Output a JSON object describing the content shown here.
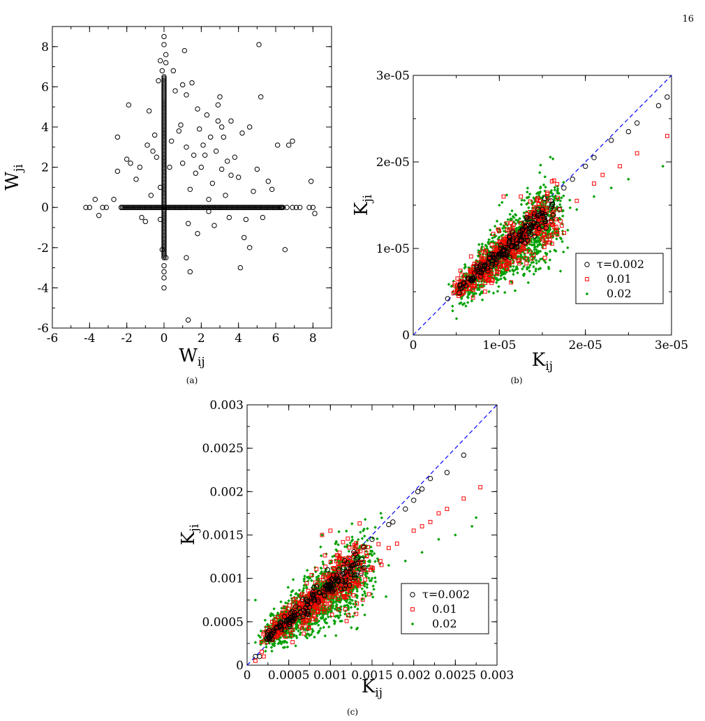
{
  "page_number": "16",
  "chart_data": [
    {
      "id": "a",
      "type": "scatter",
      "caption": "(a)",
      "xlabel": "W",
      "xlabel_sub": "ij",
      "ylabel": "W",
      "ylabel_sub": "ji",
      "xlim": [
        -6,
        9
      ],
      "ylim": [
        -6,
        9
      ],
      "xticks": [
        -6,
        -4,
        -2,
        0,
        2,
        4,
        6,
        8
      ],
      "yticks": [
        -6,
        -4,
        -2,
        0,
        2,
        4,
        6,
        8
      ],
      "xtick_labels": [
        "-6",
        "-4",
        "-2",
        "0",
        "2",
        "4",
        "6",
        "8"
      ],
      "ytick_labels": [
        "-6",
        "-4",
        "-2",
        "0",
        "2",
        "4",
        "6",
        "8"
      ],
      "grid": false,
      "marker": "open-circle",
      "colors": {
        "marker": "#000000"
      },
      "series": [
        {
          "points": [
            [
              -4.2,
              0
            ],
            [
              -4,
              0
            ],
            [
              -3.7,
              0.4
            ],
            [
              -3.5,
              -0.4
            ],
            [
              -3.3,
              0
            ],
            [
              -3.1,
              0
            ],
            [
              -2.7,
              0.4
            ],
            [
              -2.5,
              3.5
            ],
            [
              -2.5,
              1.8
            ],
            [
              -2.3,
              0
            ],
            [
              -2,
              2.4
            ],
            [
              -1.9,
              5.1
            ],
            [
              -1.8,
              2.2
            ],
            [
              -1.5,
              1.4
            ],
            [
              -1.3,
              2.0
            ],
            [
              -1.2,
              -0.5
            ],
            [
              -1,
              -0.7
            ],
            [
              -0.9,
              3.1
            ],
            [
              -0.8,
              4.8
            ],
            [
              -0.7,
              0.6
            ],
            [
              -0.6,
              2.8
            ],
            [
              -0.5,
              3.6
            ],
            [
              -0.4,
              2.5
            ],
            [
              -0.3,
              6.3
            ],
            [
              -0.2,
              -0.6
            ],
            [
              -0.2,
              1.0
            ],
            [
              0.3,
              2.0
            ],
            [
              0.4,
              3.3
            ],
            [
              0.6,
              5.8
            ],
            [
              0.5,
              6.8
            ],
            [
              0.8,
              3.8
            ],
            [
              0.9,
              4.1
            ],
            [
              1,
              2.2
            ],
            [
              1,
              6.1
            ],
            [
              1.1,
              7.8
            ],
            [
              1.2,
              3.0
            ],
            [
              1.2,
              5.6
            ],
            [
              1.3,
              -0.8
            ],
            [
              1.4,
              0.9
            ],
            [
              1.5,
              6.2
            ],
            [
              1.6,
              2.6
            ],
            [
              1.7,
              1.7
            ],
            [
              1.8,
              4.9
            ],
            [
              1.8,
              -1.3
            ],
            [
              2,
              2.0
            ],
            [
              2.1,
              3.1
            ],
            [
              2.3,
              4.6
            ],
            [
              2.4,
              0.4
            ],
            [
              2.5,
              3.5
            ],
            [
              2.6,
              1.2
            ],
            [
              2.7,
              -0.9
            ],
            [
              2.8,
              2.8
            ],
            [
              2.9,
              5.1
            ],
            [
              3,
              5.5
            ],
            [
              3.1,
              1.9
            ],
            [
              3.2,
              3.5
            ],
            [
              3.3,
              0.6
            ],
            [
              3.4,
              2.3
            ],
            [
              3.5,
              -0.5
            ],
            [
              3.6,
              4.3
            ],
            [
              3.8,
              2.5
            ],
            [
              4,
              1.5
            ],
            [
              4.1,
              -3.0
            ],
            [
              4.2,
              3.7
            ],
            [
              4.4,
              -0.6
            ],
            [
              4.6,
              4.0
            ],
            [
              4.8,
              0.8
            ],
            [
              5,
              1.9
            ],
            [
              5.1,
              8.1
            ],
            [
              5.2,
              5.5
            ],
            [
              5.3,
              -0.5
            ],
            [
              5.6,
              1.3
            ],
            [
              5.8,
              0.9
            ],
            [
              6.1,
              3.1
            ],
            [
              6.5,
              -2.1
            ],
            [
              6.7,
              3.1
            ],
            [
              6.9,
              3.3
            ],
            [
              7.1,
              0
            ],
            [
              7.8,
              0
            ],
            [
              7.9,
              1.3
            ],
            [
              8.1,
              -0.3
            ],
            [
              8,
              0
            ],
            [
              6.3,
              0
            ],
            [
              6.6,
              0
            ],
            [
              6.9,
              0
            ],
            [
              7.3,
              0
            ],
            [
              -0.2,
              7.3
            ],
            [
              0,
              8.5
            ],
            [
              0,
              8.1
            ],
            [
              0.1,
              7.6
            ],
            [
              0.1,
              7.2
            ],
            [
              -0.1,
              6.8
            ],
            [
              0,
              -3.5
            ],
            [
              0,
              -4.0
            ],
            [
              0,
              -3.2
            ],
            [
              0,
              -2.9
            ],
            [
              0.1,
              -2.5
            ],
            [
              -0.1,
              -2.1
            ],
            [
              1.2,
              -2.5
            ],
            [
              1.4,
              -3.2
            ],
            [
              1.3,
              -5.6
            ],
            [
              4.6,
              -2.0
            ],
            [
              4.3,
              -1.5
            ],
            [
              2.4,
              -0.2
            ],
            [
              3.6,
              1.6
            ],
            [
              2.2,
              2.6
            ],
            [
              2.9,
              4.3
            ],
            [
              3.1,
              4.0
            ],
            [
              1.9,
              3.9
            ]
          ],
          "dense_segments": [
            {
              "axis": "x",
              "from": -2.3,
              "to": 6.4,
              "at": 0
            },
            {
              "axis": "y",
              "from": -2.5,
              "to": 6.5,
              "at": 0
            }
          ]
        }
      ]
    },
    {
      "id": "b",
      "type": "scatter",
      "caption": "(b)",
      "xlabel": "K",
      "xlabel_sub": "ij",
      "ylabel": "K",
      "ylabel_sub": "ji",
      "xlim": [
        0,
        3e-05
      ],
      "ylim": [
        0,
        3e-05
      ],
      "xticks": [
        0,
        1e-05,
        2e-05,
        3e-05
      ],
      "yticks": [
        0,
        1e-05,
        2e-05,
        3e-05
      ],
      "xtick_labels": [
        "0",
        "1e-05",
        "2e-05",
        "3e-05"
      ],
      "ytick_labels": [
        "0",
        "1e-05",
        "2e-05",
        "3e-05"
      ],
      "grid": false,
      "legend_placement": "bottom-right",
      "reference_line": {
        "from": [
          0,
          0
        ],
        "to": [
          3e-05,
          3e-05
        ],
        "style": "dashed",
        "color": "#0000ff"
      },
      "series": [
        {
          "name": "τ=0.002",
          "marker": "open-circle",
          "color": "#000000",
          "points": [
            [
              1.3e-05,
              1.3e-05
            ],
            [
              1.45e-05,
              1.45e-05
            ],
            [
              1.6e-05,
              1.55e-05
            ],
            [
              1.75e-05,
              1.7e-05
            ],
            [
              1.85e-05,
              1.8e-05
            ],
            [
              2e-05,
              1.95e-05
            ],
            [
              2.1e-05,
              2.05e-05
            ],
            [
              2.3e-05,
              2.25e-05
            ],
            [
              2.5e-05,
              2.35e-05
            ],
            [
              2.6e-05,
              2.45e-05
            ],
            [
              2.85e-05,
              2.65e-05
            ],
            [
              2.95e-05,
              2.75e-05
            ],
            [
              5.5e-06,
              5.4e-06
            ],
            [
              4e-06,
              4.2e-06
            ],
            [
              1.2e-05,
              1.1e-05
            ]
          ]
        },
        {
          "name": "0.01",
          "marker": "open-square",
          "color": "#ff0000",
          "points": [
            [
              1.5e-05,
              1.35e-05
            ],
            [
              1.7e-05,
              1.45e-05
            ],
            [
              1.9e-05,
              1.55e-05
            ],
            [
              2.1e-05,
              1.75e-05
            ],
            [
              2.2e-05,
              1.85e-05
            ],
            [
              2.4e-05,
              1.95e-05
            ],
            [
              2.6e-05,
              2.1e-05
            ],
            [
              2.95e-05,
              2.3e-05
            ],
            [
              1.25e-05,
              1.6e-05
            ],
            [
              1.05e-05,
              1.6e-05
            ],
            [
              1.3e-05,
              1.15e-05
            ],
            [
              1.6e-05,
              1.3e-05
            ]
          ]
        },
        {
          "name": "0.02",
          "marker": "dot",
          "color": "#00a000",
          "points": [
            [
              1.5e-05,
              1.25e-05
            ],
            [
              1.7e-05,
              1.35e-05
            ],
            [
              1.9e-05,
              1.45e-05
            ],
            [
              2.1e-05,
              1.6e-05
            ],
            [
              2.3e-05,
              1.7e-05
            ],
            [
              2.5e-05,
              1.8e-05
            ],
            [
              2.9e-05,
              1.95e-05
            ],
            [
              8e-06,
              1.02e-05
            ],
            [
              1e-05,
              1.5e-05
            ],
            [
              1.2e-05,
              1.2e-05
            ],
            [
              1.4e-05,
              1.1e-05
            ]
          ]
        }
      ],
      "dense_cloud": {
        "center_line_from": [
          5e-06,
          5e-06
        ],
        "center_line_to": [
          1.6e-05,
          1.45e-05
        ],
        "spread": 1.6e-06
      }
    },
    {
      "id": "c",
      "type": "scatter",
      "caption": "(c)",
      "xlabel": "K",
      "xlabel_sub": "ij",
      "ylabel": "K",
      "ylabel_sub": "ji",
      "xlim": [
        0,
        0.003
      ],
      "ylim": [
        0,
        0.003
      ],
      "xticks": [
        0,
        0.0005,
        0.001,
        0.0015,
        0.002,
        0.0025,
        0.003
      ],
      "yticks": [
        0,
        0.0005,
        0.001,
        0.0015,
        0.002,
        0.0025,
        0.003
      ],
      "xtick_labels": [
        "0",
        "0.0005",
        "0.001",
        "0.0015",
        "0.002",
        "0.0025",
        "0.003"
      ],
      "ytick_labels": [
        "0",
        "0.0005",
        "0.001",
        "0.0015",
        "0.002",
        "0.0025",
        "0.003"
      ],
      "grid": false,
      "legend_placement": "bottom-right",
      "reference_line": {
        "from": [
          0,
          0
        ],
        "to": [
          0.003,
          0.003
        ],
        "style": "dashed",
        "color": "#0000ff"
      },
      "series": [
        {
          "name": "τ=0.002",
          "marker": "open-circle",
          "color": "#000000",
          "points": [
            [
              0.0011,
              0.0011
            ],
            [
              0.0012,
              0.00118
            ],
            [
              0.0013,
              0.00128
            ],
            [
              0.0014,
              0.00136
            ],
            [
              0.0015,
              0.00145
            ],
            [
              0.0017,
              0.00162
            ],
            [
              0.00175,
              0.00165
            ],
            [
              0.0019,
              0.0018
            ],
            [
              0.002,
              0.0019
            ],
            [
              0.00205,
              0.002
            ],
            [
              0.0021,
              0.00203
            ],
            [
              0.0022,
              0.00215
            ],
            [
              0.0024,
              0.00222
            ],
            [
              0.0026,
              0.00242
            ],
            [
              0.00015,
              0.0001
            ],
            [
              0.0001,
              0.0001
            ],
            [
              0.0003,
              0.0003
            ]
          ]
        },
        {
          "name": "0.01",
          "marker": "open-square",
          "color": "#ff0000",
          "points": [
            [
              0.0012,
              0.001
            ],
            [
              0.0014,
              0.0011
            ],
            [
              0.0016,
              0.0012
            ],
            [
              0.0017,
              0.00135
            ],
            [
              0.0018,
              0.0014
            ],
            [
              0.002,
              0.00155
            ],
            [
              0.0021,
              0.0016
            ],
            [
              0.0022,
              0.00165
            ],
            [
              0.0023,
              0.00175
            ],
            [
              0.0024,
              0.0018
            ],
            [
              0.0026,
              0.00192
            ],
            [
              0.0028,
              0.00205
            ],
            [
              0.001,
              0.00155
            ],
            [
              0.0009,
              0.0015
            ],
            [
              0.0003,
              0.0005
            ],
            [
              0.0002,
              0.0001
            ],
            [
              0.0001,
              5e-05
            ]
          ]
        },
        {
          "name": "0.02",
          "marker": "dot",
          "color": "#00a000",
          "points": [
            [
              0.0013,
              0.0009
            ],
            [
              0.0015,
              0.001
            ],
            [
              0.0017,
              0.00115
            ],
            [
              0.0019,
              0.0012
            ],
            [
              0.0021,
              0.0013
            ],
            [
              0.0023,
              0.00145
            ],
            [
              0.0025,
              0.0015
            ],
            [
              0.0027,
              0.0016
            ],
            [
              0.00275,
              0.0017
            ],
            [
              0.0001,
              0.00075
            ],
            [
              0.0009,
              0.0015
            ],
            [
              0.0011,
              0.0012
            ]
          ]
        }
      ],
      "dense_cloud": {
        "center_line_from": [
          0.0002,
          0.0003
        ],
        "center_line_to": [
          0.0014,
          0.0012
        ],
        "spread": 0.00016
      }
    }
  ]
}
